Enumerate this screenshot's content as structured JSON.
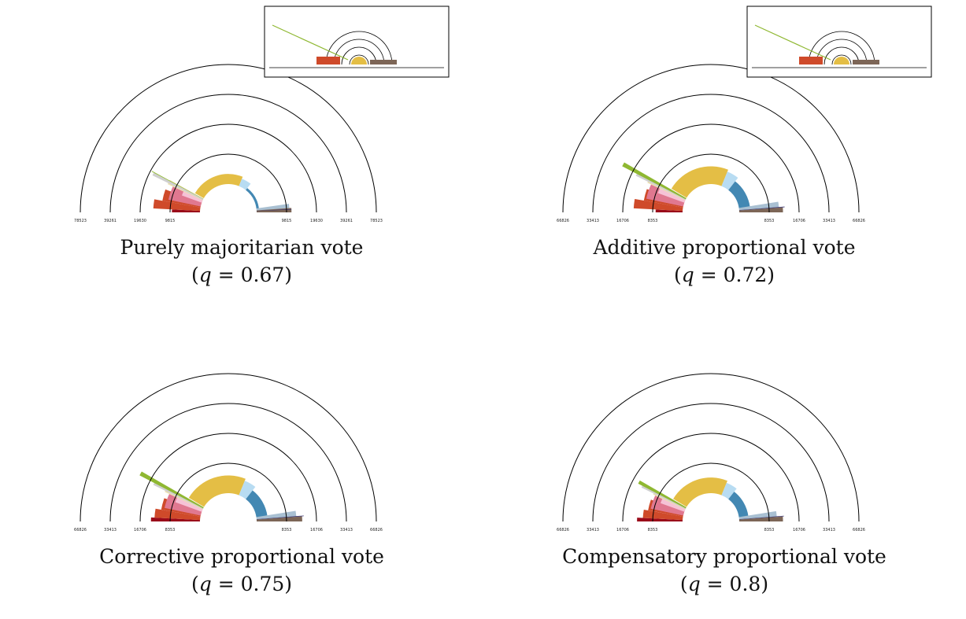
{
  "chart_data": [
    {
      "type": "polar-bar",
      "title": "Purely majoritarian vote",
      "q_label": "q",
      "q_value": "0.67",
      "tick_labels": [
        "78523",
        "39261",
        "19630",
        "9815",
        "9815",
        "19630",
        "39261",
        "78523"
      ],
      "inset": true,
      "wedges": [
        {
          "color": "#9a0a1a",
          "angle_start": 0,
          "angle_end": 3,
          "value": 9400
        },
        {
          "color": "#cf4a2a",
          "angle_start": 3,
          "angle_end": 10,
          "value": 14500
        },
        {
          "color": "#cf4a2a",
          "angle_start": 10,
          "angle_end": 20,
          "value": 12000
        },
        {
          "color": "#e07890",
          "angle_start": 12,
          "angle_end": 25,
          "value": 10500
        },
        {
          "color": "#f6c2d6",
          "angle_start": 20,
          "angle_end": 27,
          "value": 8000
        },
        {
          "color": "#ece0b0",
          "angle_start": 25,
          "angle_end": 29,
          "value": 12000
        },
        {
          "color": "#cfcfcf",
          "angle_start": 26,
          "angle_end": 28,
          "value": 18000
        },
        {
          "color": "#8fb832",
          "angle_start": 28,
          "angle_end": 28.5,
          "value": 19000
        },
        {
          "color": "#e4be45",
          "angle_start": 30,
          "angle_end": 112,
          "value": 6200
        },
        {
          "color": "#b8dcf2",
          "angle_start": 112,
          "angle_end": 128,
          "value": 5900
        },
        {
          "color": "#4388b3",
          "angle_start": 128,
          "angle_end": 173,
          "value": 5200
        },
        {
          "color": "#a9c0d2",
          "angle_start": 172,
          "angle_end": 177,
          "value": 10500
        },
        {
          "color": "#7d6657",
          "angle_start": 176,
          "angle_end": 180,
          "value": 11000
        },
        {
          "color": "#3a3570",
          "angle_start": 177,
          "angle_end": 177.5,
          "value": 11000
        }
      ]
    },
    {
      "type": "polar-bar",
      "title": "Additive proportional vote",
      "q_label": "q",
      "q_value": "0.72",
      "tick_labels": [
        "66826",
        "33413",
        "16706",
        "8353",
        "8353",
        "16706",
        "33413",
        "66826"
      ],
      "inset": true,
      "wedges": [
        {
          "color": "#9a0a1a",
          "angle_start": 0,
          "angle_end": 3,
          "value": 7800
        },
        {
          "color": "#cf4a2a",
          "angle_start": 3,
          "angle_end": 10,
          "value": 13000
        },
        {
          "color": "#cf4a2a",
          "angle_start": 10,
          "angle_end": 20,
          "value": 10500
        },
        {
          "color": "#e07890",
          "angle_start": 12,
          "angle_end": 25,
          "value": 10000
        },
        {
          "color": "#f6c2d6",
          "angle_start": 20,
          "angle_end": 27,
          "value": 8000
        },
        {
          "color": "#ece0b0",
          "angle_start": 25,
          "angle_end": 29,
          "value": 11000
        },
        {
          "color": "#cfcfcf",
          "angle_start": 26,
          "angle_end": 28.5,
          "value": 15000
        },
        {
          "color": "#8fb832",
          "angle_start": 27.5,
          "angle_end": 30,
          "value": 22000
        },
        {
          "color": "#e4be45",
          "angle_start": 31,
          "angle_end": 112,
          "value": 6300
        },
        {
          "color": "#b8dcf2",
          "angle_start": 112,
          "angle_end": 128,
          "value": 6000
        },
        {
          "color": "#4388b3",
          "angle_start": 128,
          "angle_end": 172,
          "value": 5400
        },
        {
          "color": "#a9c0d2",
          "angle_start": 171,
          "angle_end": 176,
          "value": 10500
        },
        {
          "color": "#7d6657",
          "angle_start": 176,
          "angle_end": 180,
          "value": 11500
        },
        {
          "color": "#3a3570",
          "angle_start": 175.5,
          "angle_end": 176,
          "value": 12000
        }
      ]
    },
    {
      "type": "polar-bar",
      "title": "Corrective proportional vote",
      "q_label": "q",
      "q_value": "0.75",
      "tick_labels": [
        "66826",
        "33413",
        "16706",
        "8353",
        "8353",
        "16706",
        "33413",
        "66826"
      ],
      "inset": false,
      "wedges": [
        {
          "color": "#9a0a1a",
          "angle_start": 0,
          "angle_end": 3,
          "value": 13000
        },
        {
          "color": "#cf4a2a",
          "angle_start": 3,
          "angle_end": 10,
          "value": 12000
        },
        {
          "color": "#cf4a2a",
          "angle_start": 10,
          "angle_end": 20,
          "value": 10500
        },
        {
          "color": "#e07890",
          "angle_start": 12,
          "angle_end": 25,
          "value": 9800
        },
        {
          "color": "#f6c2d6",
          "angle_start": 20,
          "angle_end": 27,
          "value": 8000
        },
        {
          "color": "#ece0b0",
          "angle_start": 25,
          "angle_end": 29,
          "value": 11000
        },
        {
          "color": "#cfcfcf",
          "angle_start": 26,
          "angle_end": 28.5,
          "value": 15000
        },
        {
          "color": "#8fb832",
          "angle_start": 27.5,
          "angle_end": 30,
          "value": 22000
        },
        {
          "color": "#e4be45",
          "angle_start": 31,
          "angle_end": 112,
          "value": 6300
        },
        {
          "color": "#b8dcf2",
          "angle_start": 112,
          "angle_end": 128,
          "value": 6000
        },
        {
          "color": "#4388b3",
          "angle_start": 128,
          "angle_end": 172,
          "value": 5400
        },
        {
          "color": "#a9c0d2",
          "angle_start": 171,
          "angle_end": 176,
          "value": 10500
        },
        {
          "color": "#7d6657",
          "angle_start": 176,
          "angle_end": 180,
          "value": 12000
        },
        {
          "color": "#3a3570",
          "angle_start": 175.5,
          "angle_end": 176,
          "value": 12500
        }
      ]
    },
    {
      "type": "polar-bar",
      "title": "Compensatory proportional vote",
      "q_label": "q",
      "q_value": "0.8",
      "tick_labels": [
        "66826",
        "33413",
        "16706",
        "8353",
        "8353",
        "16706",
        "33413",
        "66826"
      ],
      "inset": false,
      "wedges": [
        {
          "color": "#9a0a1a",
          "angle_start": 0,
          "angle_end": 3,
          "value": 12000
        },
        {
          "color": "#cf4a2a",
          "angle_start": 3,
          "angle_end": 10,
          "value": 10500
        },
        {
          "color": "#cf4a2a",
          "angle_start": 10,
          "angle_end": 20,
          "value": 9500
        },
        {
          "color": "#e07890",
          "angle_start": 12,
          "angle_end": 25,
          "value": 9000
        },
        {
          "color": "#f6c2d6",
          "angle_start": 20,
          "angle_end": 27,
          "value": 7500
        },
        {
          "color": "#ece0b0",
          "angle_start": 25,
          "angle_end": 29,
          "value": 9500
        },
        {
          "color": "#cfcfcf",
          "angle_start": 26,
          "angle_end": 28.5,
          "value": 13000
        },
        {
          "color": "#8fb832",
          "angle_start": 27.5,
          "angle_end": 30,
          "value": 14500
        },
        {
          "color": "#e4be45",
          "angle_start": 31,
          "angle_end": 112,
          "value": 6000
        },
        {
          "color": "#b8dcf2",
          "angle_start": 112,
          "angle_end": 128,
          "value": 5700
        },
        {
          "color": "#4388b3",
          "angle_start": 128,
          "angle_end": 172,
          "value": 5200
        },
        {
          "color": "#a9c0d2",
          "angle_start": 171,
          "angle_end": 176,
          "value": 10000
        },
        {
          "color": "#7d6657",
          "angle_start": 176,
          "angle_end": 180,
          "value": 11500
        },
        {
          "color": "#3a3570",
          "angle_start": 175.5,
          "angle_end": 176,
          "value": 11800
        }
      ]
    }
  ]
}
